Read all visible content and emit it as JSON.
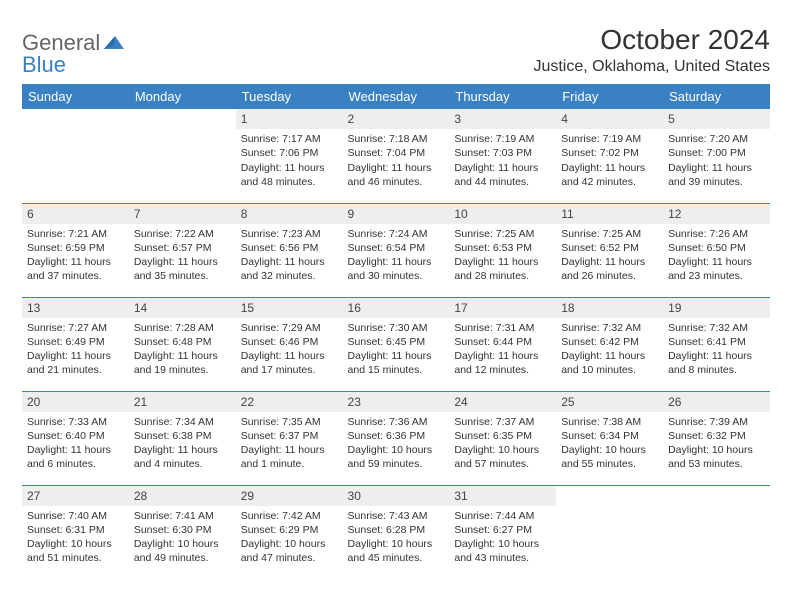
{
  "logo": {
    "part1": "General",
    "part2": "Blue"
  },
  "title": "October 2024",
  "location": "Justice, Oklahoma, United States",
  "colors": {
    "brand": "#3a81c4",
    "header_bg": "#3a81c4",
    "daynum_bg": "#eeeeee"
  },
  "day_headers": [
    "Sunday",
    "Monday",
    "Tuesday",
    "Wednesday",
    "Thursday",
    "Friday",
    "Saturday"
  ],
  "weeks": [
    [
      null,
      null,
      {
        "n": "1",
        "sr": "Sunrise: 7:17 AM",
        "ss": "Sunset: 7:06 PM",
        "dl": "Daylight: 11 hours and 48 minutes."
      },
      {
        "n": "2",
        "sr": "Sunrise: 7:18 AM",
        "ss": "Sunset: 7:04 PM",
        "dl": "Daylight: 11 hours and 46 minutes."
      },
      {
        "n": "3",
        "sr": "Sunrise: 7:19 AM",
        "ss": "Sunset: 7:03 PM",
        "dl": "Daylight: 11 hours and 44 minutes."
      },
      {
        "n": "4",
        "sr": "Sunrise: 7:19 AM",
        "ss": "Sunset: 7:02 PM",
        "dl": "Daylight: 11 hours and 42 minutes."
      },
      {
        "n": "5",
        "sr": "Sunrise: 7:20 AM",
        "ss": "Sunset: 7:00 PM",
        "dl": "Daylight: 11 hours and 39 minutes."
      }
    ],
    [
      {
        "n": "6",
        "sr": "Sunrise: 7:21 AM",
        "ss": "Sunset: 6:59 PM",
        "dl": "Daylight: 11 hours and 37 minutes."
      },
      {
        "n": "7",
        "sr": "Sunrise: 7:22 AM",
        "ss": "Sunset: 6:57 PM",
        "dl": "Daylight: 11 hours and 35 minutes."
      },
      {
        "n": "8",
        "sr": "Sunrise: 7:23 AM",
        "ss": "Sunset: 6:56 PM",
        "dl": "Daylight: 11 hours and 32 minutes."
      },
      {
        "n": "9",
        "sr": "Sunrise: 7:24 AM",
        "ss": "Sunset: 6:54 PM",
        "dl": "Daylight: 11 hours and 30 minutes."
      },
      {
        "n": "10",
        "sr": "Sunrise: 7:25 AM",
        "ss": "Sunset: 6:53 PM",
        "dl": "Daylight: 11 hours and 28 minutes."
      },
      {
        "n": "11",
        "sr": "Sunrise: 7:25 AM",
        "ss": "Sunset: 6:52 PM",
        "dl": "Daylight: 11 hours and 26 minutes."
      },
      {
        "n": "12",
        "sr": "Sunrise: 7:26 AM",
        "ss": "Sunset: 6:50 PM",
        "dl": "Daylight: 11 hours and 23 minutes."
      }
    ],
    [
      {
        "n": "13",
        "sr": "Sunrise: 7:27 AM",
        "ss": "Sunset: 6:49 PM",
        "dl": "Daylight: 11 hours and 21 minutes."
      },
      {
        "n": "14",
        "sr": "Sunrise: 7:28 AM",
        "ss": "Sunset: 6:48 PM",
        "dl": "Daylight: 11 hours and 19 minutes."
      },
      {
        "n": "15",
        "sr": "Sunrise: 7:29 AM",
        "ss": "Sunset: 6:46 PM",
        "dl": "Daylight: 11 hours and 17 minutes."
      },
      {
        "n": "16",
        "sr": "Sunrise: 7:30 AM",
        "ss": "Sunset: 6:45 PM",
        "dl": "Daylight: 11 hours and 15 minutes."
      },
      {
        "n": "17",
        "sr": "Sunrise: 7:31 AM",
        "ss": "Sunset: 6:44 PM",
        "dl": "Daylight: 11 hours and 12 minutes."
      },
      {
        "n": "18",
        "sr": "Sunrise: 7:32 AM",
        "ss": "Sunset: 6:42 PM",
        "dl": "Daylight: 11 hours and 10 minutes."
      },
      {
        "n": "19",
        "sr": "Sunrise: 7:32 AM",
        "ss": "Sunset: 6:41 PM",
        "dl": "Daylight: 11 hours and 8 minutes."
      }
    ],
    [
      {
        "n": "20",
        "sr": "Sunrise: 7:33 AM",
        "ss": "Sunset: 6:40 PM",
        "dl": "Daylight: 11 hours and 6 minutes."
      },
      {
        "n": "21",
        "sr": "Sunrise: 7:34 AM",
        "ss": "Sunset: 6:38 PM",
        "dl": "Daylight: 11 hours and 4 minutes."
      },
      {
        "n": "22",
        "sr": "Sunrise: 7:35 AM",
        "ss": "Sunset: 6:37 PM",
        "dl": "Daylight: 11 hours and 1 minute."
      },
      {
        "n": "23",
        "sr": "Sunrise: 7:36 AM",
        "ss": "Sunset: 6:36 PM",
        "dl": "Daylight: 10 hours and 59 minutes."
      },
      {
        "n": "24",
        "sr": "Sunrise: 7:37 AM",
        "ss": "Sunset: 6:35 PM",
        "dl": "Daylight: 10 hours and 57 minutes."
      },
      {
        "n": "25",
        "sr": "Sunrise: 7:38 AM",
        "ss": "Sunset: 6:34 PM",
        "dl": "Daylight: 10 hours and 55 minutes."
      },
      {
        "n": "26",
        "sr": "Sunrise: 7:39 AM",
        "ss": "Sunset: 6:32 PM",
        "dl": "Daylight: 10 hours and 53 minutes."
      }
    ],
    [
      {
        "n": "27",
        "sr": "Sunrise: 7:40 AM",
        "ss": "Sunset: 6:31 PM",
        "dl": "Daylight: 10 hours and 51 minutes."
      },
      {
        "n": "28",
        "sr": "Sunrise: 7:41 AM",
        "ss": "Sunset: 6:30 PM",
        "dl": "Daylight: 10 hours and 49 minutes."
      },
      {
        "n": "29",
        "sr": "Sunrise: 7:42 AM",
        "ss": "Sunset: 6:29 PM",
        "dl": "Daylight: 10 hours and 47 minutes."
      },
      {
        "n": "30",
        "sr": "Sunrise: 7:43 AM",
        "ss": "Sunset: 6:28 PM",
        "dl": "Daylight: 10 hours and 45 minutes."
      },
      {
        "n": "31",
        "sr": "Sunrise: 7:44 AM",
        "ss": "Sunset: 6:27 PM",
        "dl": "Daylight: 10 hours and 43 minutes."
      },
      null,
      null
    ]
  ]
}
